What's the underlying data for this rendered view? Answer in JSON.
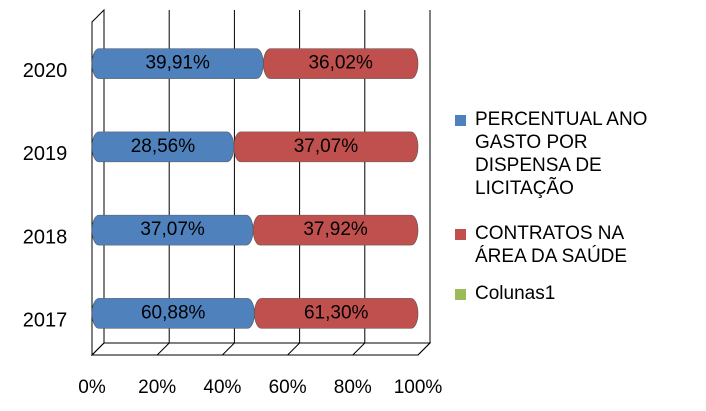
{
  "chart_data": {
    "type": "bar",
    "orientation": "horizontal",
    "stacking": "percent",
    "categories": [
      "2017",
      "2018",
      "2019",
      "2020"
    ],
    "series": [
      {
        "name": "PERCENTUAL ANO GASTO POR DISPENSA DE LICITAÇÃO",
        "color": "#4f81bd",
        "values": [
          60.88,
          37.07,
          28.56,
          39.91
        ],
        "value_labels": [
          "60,88%",
          "37,07%",
          "28,56%",
          "39,91%"
        ]
      },
      {
        "name": "CONTRATOS NA ÁREA DA SAÚDE",
        "color": "#c0504d",
        "values": [
          61.3,
          37.92,
          37.07,
          36.02
        ],
        "value_labels": [
          "61,30%",
          "37,92%",
          "37,07%",
          "36,02%"
        ]
      },
      {
        "name": "Colunas1",
        "color": "#9bbb59",
        "values": [
          null,
          null,
          null,
          null
        ]
      }
    ],
    "xlim": [
      0,
      100
    ],
    "xticks": [
      {
        "value": 0,
        "label": "0%"
      },
      {
        "value": 20,
        "label": "20%"
      },
      {
        "value": 40,
        "label": "40%"
      },
      {
        "value": 60,
        "label": "60%"
      },
      {
        "value": 80,
        "label": "80%"
      },
      {
        "value": 100,
        "label": "100%"
      }
    ],
    "grid": true
  }
}
